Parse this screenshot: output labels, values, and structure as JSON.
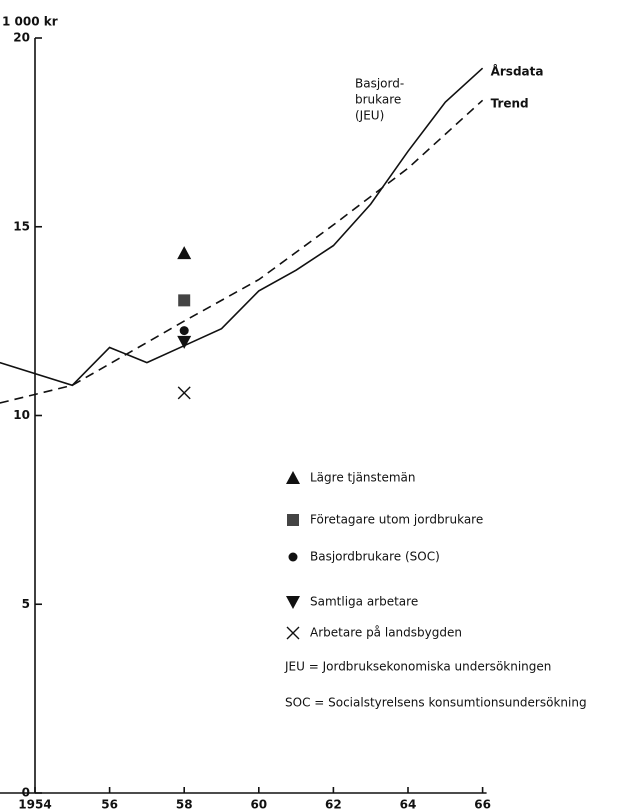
{
  "chart_data": {
    "type": "line",
    "y_label": "1 000 kr",
    "xlim": [
      1953.06,
      1966
    ],
    "ylim": [
      0,
      20
    ],
    "xticks": [
      1954,
      {
        "value": 1956,
        "label": "56"
      },
      {
        "value": 1958,
        "label": "58"
      },
      {
        "value": 1960,
        "label": "60"
      },
      {
        "value": 1962,
        "label": "62"
      },
      {
        "value": 1964,
        "label": "64"
      },
      {
        "value": 1966,
        "label": "66"
      }
    ],
    "yticks": [
      0,
      5,
      10,
      15,
      20
    ],
    "group_label": [
      "Basjord-",
      "brukare",
      "(JEU)"
    ],
    "series": [
      {
        "name": "Årsdata",
        "style": "solid",
        "color": "#111",
        "x": [
          1953.06,
          1955,
          1956,
          1957,
          1958,
          1959,
          1960,
          1961,
          1962,
          1963,
          1964,
          1965,
          1966
        ],
        "values": [
          11.4,
          10.8,
          11.8,
          11.4,
          11.85,
          12.3,
          13.3,
          13.85,
          14.5,
          15.6,
          17.0,
          18.3,
          19.2
        ]
      },
      {
        "name": "Trend",
        "style": "dashed",
        "color": "#111",
        "x": [
          1953.06,
          1955,
          1958,
          1960,
          1962,
          1964,
          1966
        ],
        "values": [
          10.33,
          10.8,
          12.5,
          13.6,
          15.05,
          16.55,
          18.35
        ]
      },
      {
        "name": "Lägre tjänstemän",
        "marker": "triangle-up",
        "color": "#111",
        "x": [
          1958
        ],
        "values": [
          14.3
        ]
      },
      {
        "name": "Företagare utom jordbrukare",
        "marker": "square",
        "color": "#444",
        "x": [
          1958
        ],
        "values": [
          13.05
        ]
      },
      {
        "name": "Basjordbrukare (SOC)",
        "marker": "circle",
        "color": "#111",
        "x": [
          1958
        ],
        "values": [
          12.25
        ]
      },
      {
        "name": "Samtliga arbetare",
        "marker": "triangle-down",
        "color": "#111",
        "x": [
          1958
        ],
        "values": [
          11.95
        ]
      },
      {
        "name": "Arbetare på landsbygden",
        "marker": "x",
        "color": "#111",
        "x": [
          1958
        ],
        "values": [
          10.6
        ]
      }
    ],
    "notes": [
      "JEU = Jordbruksekonomiska undersökningen",
      "SOC = Socialstyrelsens konsumtionsundersökning"
    ]
  }
}
